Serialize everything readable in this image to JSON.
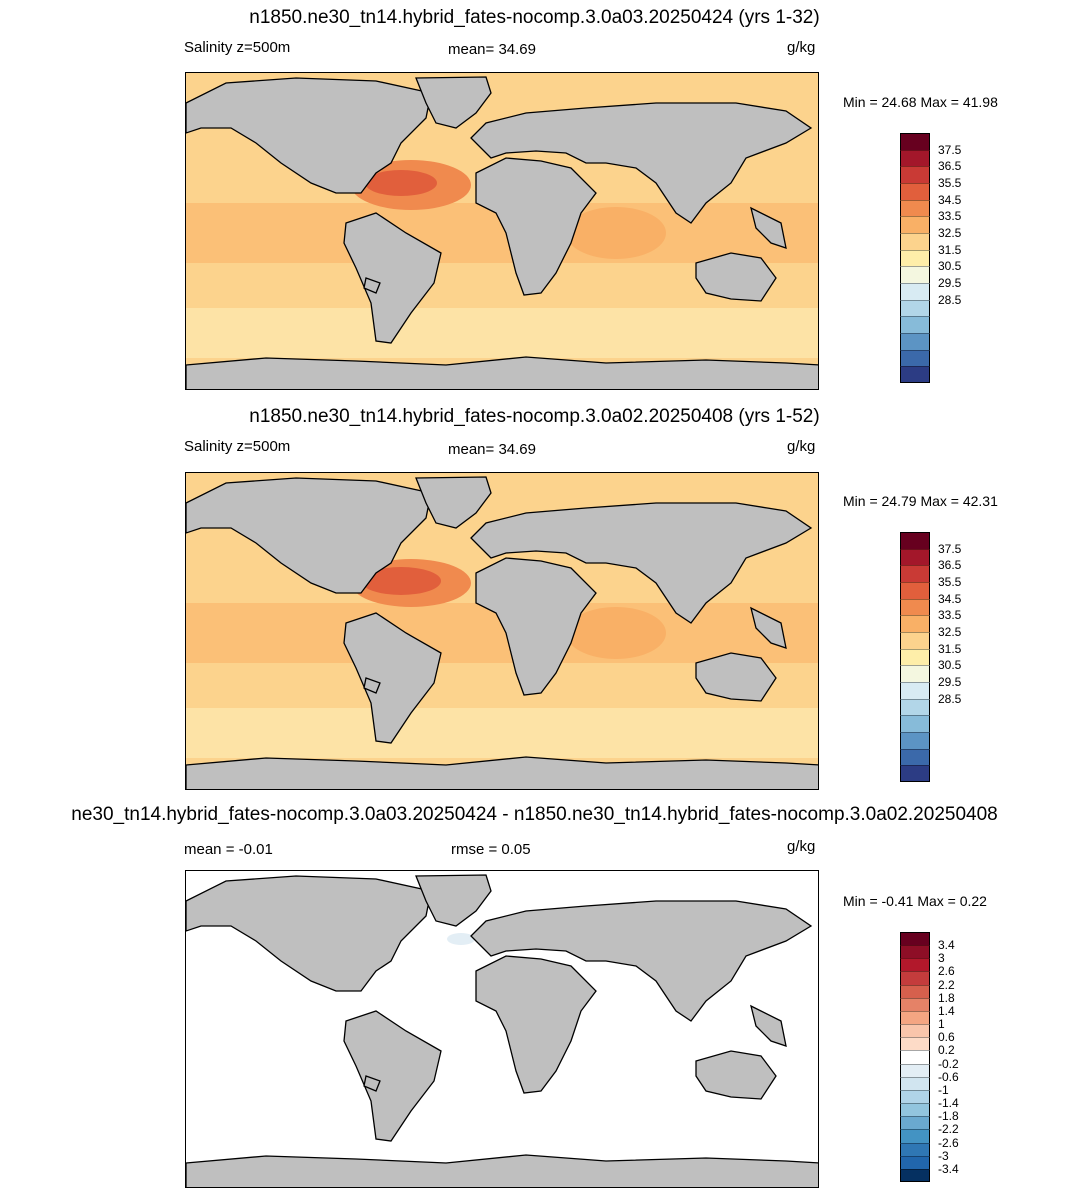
{
  "panels": [
    {
      "title": "n1850.ne30_tn14.hybrid_fates-nocomp.3.0a03.20250424 (yrs 1-32)",
      "left_label": "Salinity z=500m",
      "mid_label": "mean=  34.69",
      "units": "g/kg",
      "minmax": "Min =  24.68 Max =  41.98",
      "colorbar": {
        "labels": [
          "37.5",
          "36.5",
          "35.5",
          "34.5",
          "33.5",
          "32.5",
          "31.5",
          "30.5",
          "29.5",
          "28.5"
        ],
        "colors": [
          "#67001f",
          "#a3172a",
          "#c93a35",
          "#e15f3c",
          "#f08a4e",
          "#f9b066",
          "#fcd38d",
          "#feeea9",
          "#f4f7e0",
          "#d8ebf3",
          "#b2d6e8",
          "#87bbd9",
          "#5c94c4",
          "#3b69aa",
          "#2c3c84"
        ]
      },
      "ocean_fill": "#fcd38d"
    },
    {
      "title": "n1850.ne30_tn14.hybrid_fates-nocomp.3.0a02.20250408 (yrs 1-52)",
      "left_label": "Salinity z=500m",
      "mid_label": "mean=  34.69",
      "units": "g/kg",
      "minmax": "Min =  24.79 Max =  42.31",
      "colorbar": {
        "labels": [
          "37.5",
          "36.5",
          "35.5",
          "34.5",
          "33.5",
          "32.5",
          "31.5",
          "30.5",
          "29.5",
          "28.5"
        ],
        "colors": [
          "#67001f",
          "#a3172a",
          "#c93a35",
          "#e15f3c",
          "#f08a4e",
          "#f9b066",
          "#fcd38d",
          "#feeea9",
          "#f4f7e0",
          "#d8ebf3",
          "#b2d6e8",
          "#87bbd9",
          "#5c94c4",
          "#3b69aa",
          "#2c3c84"
        ]
      },
      "ocean_fill": "#fcd38d"
    },
    {
      "title": "ne30_tn14.hybrid_fates-nocomp.3.0a03.20250424 - n1850.ne30_tn14.hybrid_fates-nocomp.3.0a02.20250408",
      "left_label": "mean =  -0.01",
      "mid_label": "rmse =   0.05",
      "units": "g/kg",
      "minmax": "Min =  -0.41 Max =   0.22",
      "colorbar": {
        "labels": [
          "3.4",
          "3",
          "2.6",
          "2.2",
          "1.8",
          "1.4",
          "1",
          "0.6",
          "0.2",
          "-0.2",
          "-0.6",
          "-1",
          "-1.4",
          "-1.8",
          "-2.2",
          "-2.6",
          "-3",
          "-3.4"
        ],
        "colors": [
          "#67001f",
          "#8e0e26",
          "#b2182b",
          "#c43c3c",
          "#d6604d",
          "#e58267",
          "#f4a582",
          "#f9c5ab",
          "#fddbc7",
          "#ffffff",
          "#e3eef5",
          "#d1e5f0",
          "#b0d4e8",
          "#92c5de",
          "#6aa9cf",
          "#4393c3",
          "#2f77b4",
          "#2166ac",
          "#053061"
        ]
      },
      "ocean_fill": "#ffffff"
    }
  ]
}
